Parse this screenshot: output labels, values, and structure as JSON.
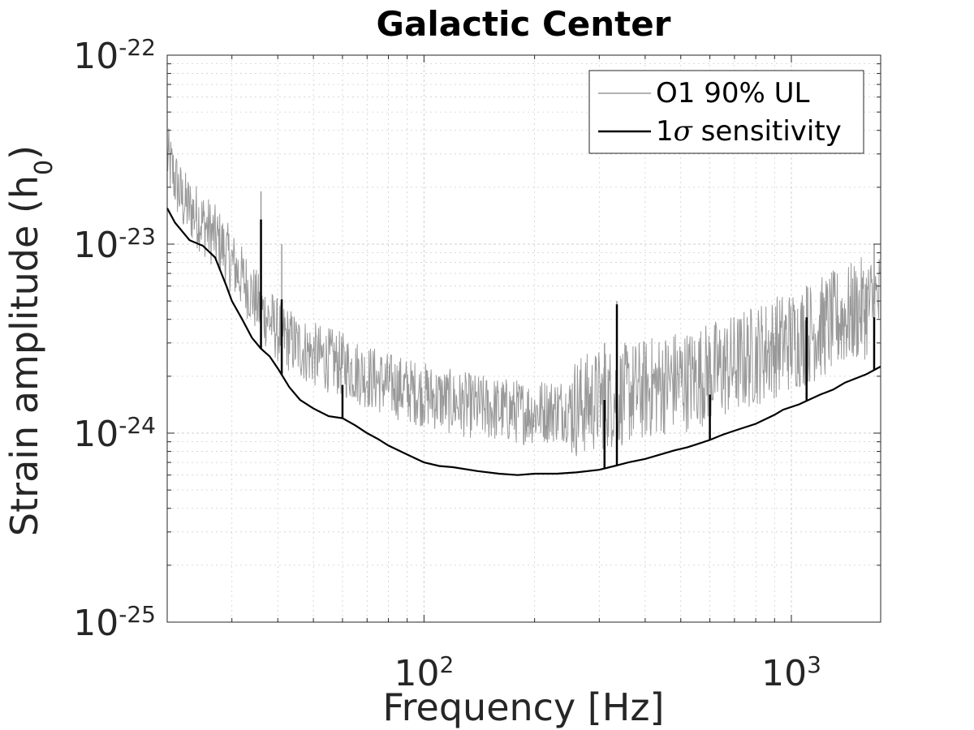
{
  "chart_data": {
    "type": "line",
    "title": "Galactic Center",
    "xlabel": "Frequency [Hz]",
    "ylabel": "Strain amplitude (h",
    "ylabel_subscript": "0",
    "xscale": "log",
    "yscale": "log",
    "xlim": [
      20,
      1750
    ],
    "ylim": [
      1e-25,
      1e-22
    ],
    "x_ticks": [
      {
        "value": 100,
        "base": "10",
        "exp": "2"
      },
      {
        "value": 1000,
        "base": "10",
        "exp": "3"
      }
    ],
    "y_ticks": [
      {
        "value": 1e-22,
        "base": "10",
        "exp": "-22"
      },
      {
        "value": 1e-23,
        "base": "10",
        "exp": "-23"
      },
      {
        "value": 1e-24,
        "base": "10",
        "exp": "-24"
      },
      {
        "value": 1e-25,
        "base": "10",
        "exp": "-25"
      }
    ],
    "grid": true,
    "legend_position": "top-right",
    "series": [
      {
        "name": "O1 90% UL",
        "color": "#999999",
        "style": "noisy upper limit",
        "x": [
          20,
          22,
          25,
          28,
          30,
          33,
          36,
          40,
          45,
          50,
          60,
          70,
          80,
          100,
          120,
          150,
          180,
          200,
          250,
          300,
          350,
          400,
          480,
          520,
          600,
          700,
          800,
          950,
          1050,
          1200,
          1350,
          1500,
          1750
        ],
        "y": [
          2.9e-23,
          1.7e-23,
          1.3e-23,
          1e-23,
          8e-24,
          6e-24,
          4.5e-24,
          3.5e-24,
          2.9e-24,
          2.6e-24,
          2.3e-24,
          2e-24,
          1.8e-24,
          1.6e-24,
          1.45e-24,
          1.35e-24,
          1.3e-24,
          1.3e-24,
          1.35e-24,
          1.5e-24,
          1.6e-24,
          1.7e-24,
          1.9e-24,
          1.9e-24,
          2.1e-24,
          2.3e-24,
          2.6e-24,
          3e-24,
          3.2e-24,
          3.6e-24,
          4e-24,
          4.4e-24,
          5e-24
        ],
        "spikes": [
          {
            "x": 36,
            "y": 1.9e-23
          },
          {
            "x": 41,
            "y": 1e-23
          },
          {
            "x": 60,
            "y": 3e-24
          },
          {
            "x": 310,
            "y": 3e-24
          },
          {
            "x": 335,
            "y": 5e-24
          },
          {
            "x": 1100,
            "y": 6e-24
          },
          {
            "x": 1230,
            "y": 5e-24
          },
          {
            "x": 1680,
            "y": 1e-23
          }
        ]
      },
      {
        "name": "1σ sensitivity",
        "legend_number": "1",
        "legend_sigma": "σ",
        "legend_text": " sensitivity",
        "color": "#000000",
        "style": "smooth curve with narrow lines",
        "x": [
          20,
          21,
          23,
          25,
          27,
          29,
          30,
          32,
          34,
          36,
          38,
          40,
          43,
          46,
          50,
          55,
          60,
          65,
          70,
          75,
          80,
          90,
          100,
          110,
          120,
          140,
          160,
          180,
          200,
          230,
          260,
          300,
          330,
          360,
          400,
          450,
          480,
          520,
          550,
          600,
          650,
          700,
          800,
          900,
          950,
          1050,
          1100,
          1200,
          1300,
          1400,
          1500,
          1600,
          1750
        ],
        "y": [
          1.55e-23,
          1.3e-23,
          1.05e-23,
          9.8e-24,
          8.5e-24,
          6e-24,
          5e-24,
          4e-24,
          3.2e-24,
          2.8e-24,
          2.55e-24,
          2.2e-24,
          1.75e-24,
          1.5e-24,
          1.35e-24,
          1.23e-24,
          1.2e-24,
          1.1e-24,
          1e-24,
          9.3e-25,
          8.6e-25,
          7.7e-25,
          7e-25,
          6.7e-25,
          6.6e-25,
          6.3e-25,
          6.1e-25,
          6e-25,
          6.1e-25,
          6.1e-25,
          6.2e-25,
          6.4e-25,
          6.7e-25,
          7e-25,
          7.3e-25,
          7.8e-25,
          8.1e-25,
          8.4e-25,
          8.7e-25,
          9.2e-25,
          9.8e-25,
          1.03e-24,
          1.12e-24,
          1.25e-24,
          1.33e-24,
          1.42e-24,
          1.48e-24,
          1.6e-24,
          1.7e-24,
          1.85e-24,
          1.95e-24,
          2.05e-24,
          2.25e-24
        ],
        "spikes": [
          {
            "x": 36,
            "y": 1.35e-23
          },
          {
            "x": 41,
            "y": 5.1e-24
          },
          {
            "x": 60,
            "y": 1.8e-24
          },
          {
            "x": 310,
            "y": 1.5e-24
          },
          {
            "x": 335,
            "y": 4.8e-24
          },
          {
            "x": 600,
            "y": 1.6e-24
          },
          {
            "x": 1100,
            "y": 4.1e-24
          },
          {
            "x": 1680,
            "y": 4.1e-24
          }
        ]
      }
    ]
  }
}
